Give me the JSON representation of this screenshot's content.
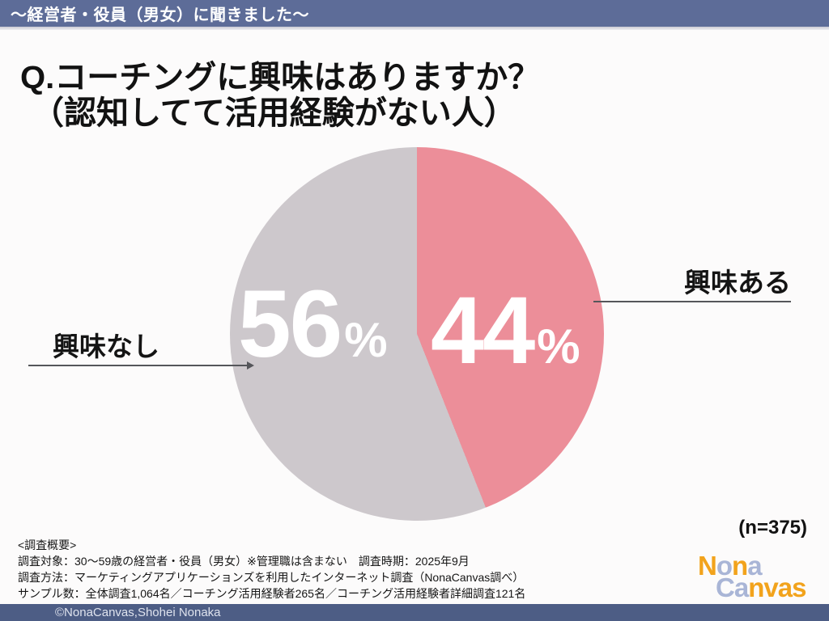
{
  "header": {
    "bar_text": "〜経営者・役員（男女）に聞きました〜",
    "bar_color": "#5d6c98"
  },
  "title": {
    "line1": "Q.コーチングに興味はありますか？",
    "line2": "（認知してて活用経験がない人）"
  },
  "chart_data": {
    "type": "pie",
    "title": "Q.コーチングに興味はありますか？（認知してて活用経験がない人）",
    "sample_note": "(n=375)",
    "start_angle": "top",
    "direction": "clockwise",
    "value_text_color": "#ffffff",
    "slices": [
      {
        "label": "興味ある",
        "value": 44,
        "unit": "%",
        "color": "#ec8e99"
      },
      {
        "label": "興味なし",
        "value": 56,
        "unit": "%",
        "color": "#cdc8cc"
      }
    ]
  },
  "survey": {
    "lines": [
      "<調査概要>",
      "調査対象：30〜59歳の経営者・役員（男女）※管理職は含まない　調査時期：2025年9月",
      "調査方法：マーケティングアプリケーションズを利用したインターネット調査（NonaCanvas調べ）",
      "サンプル数：全体調査1,064名／コーチング活用経験者265名／コーチング活用経験者詳細調査121名"
    ]
  },
  "logo": {
    "palette": {
      "orange": "#f2a31c",
      "blue": "#a9b5d6"
    },
    "lines": [
      {
        "letters": [
          [
            "N",
            "orange"
          ],
          [
            "o",
            "blue"
          ],
          [
            "n",
            "orange"
          ],
          [
            "a",
            "blue"
          ]
        ]
      },
      {
        "letters": [
          [
            "C",
            "blue"
          ],
          [
            "a",
            "blue"
          ],
          [
            "n",
            "orange"
          ],
          [
            "v",
            "orange"
          ],
          [
            "a",
            "orange"
          ],
          [
            "s",
            "orange"
          ]
        ]
      }
    ]
  },
  "footer": {
    "text": "©NonaCanvas,Shohei Nonaka",
    "bar_color": "#4d5d85"
  }
}
